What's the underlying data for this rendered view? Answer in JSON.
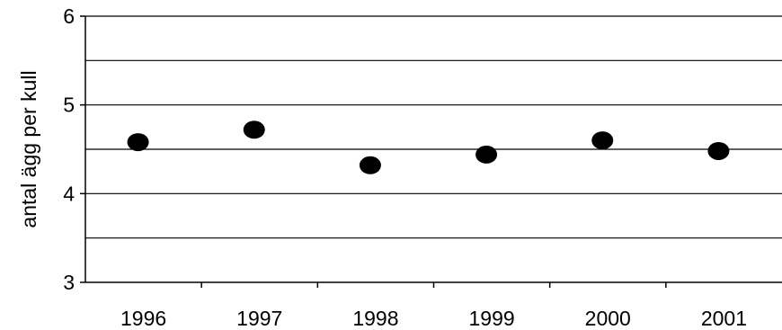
{
  "chart_data": {
    "type": "scatter",
    "title": "",
    "xlabel": "",
    "ylabel": "antal ägg per kull",
    "categories": [
      "1996",
      "1997",
      "1998",
      "1999",
      "2000",
      "2001"
    ],
    "series": [
      {
        "values": [
          4.58,
          4.72,
          4.32,
          4.44,
          4.6,
          4.48
        ]
      }
    ],
    "ylim": [
      3,
      6
    ],
    "yticks": [
      "3",
      "4",
      "5",
      "6"
    ],
    "grid": true,
    "gridlines": [
      3.5,
      4,
      4.5,
      5,
      5.5,
      6
    ],
    "legend": "none",
    "colors": {
      "marker": "#000000",
      "grid": "#000000",
      "axis": "#000000"
    }
  }
}
